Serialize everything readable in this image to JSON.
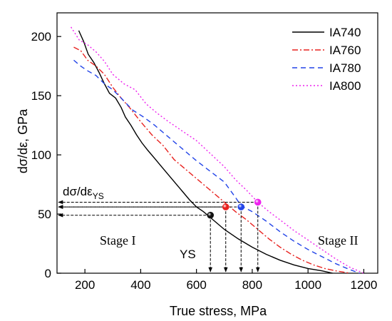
{
  "chart_data": {
    "type": "line",
    "xlabel": "True stress, MPa",
    "ylabel": "dσ/dε, GPa",
    "xlim": [
      100,
      1250
    ],
    "ylim": [
      0,
      220
    ],
    "xticks": [
      200,
      400,
      600,
      800,
      1000,
      1200
    ],
    "yticks": [
      0,
      50,
      100,
      150,
      200
    ],
    "grid": false,
    "legend_position": "top-right",
    "series": [
      {
        "name": "IA740",
        "color": "#000000",
        "dash": "solid",
        "points": [
          [
            178,
            205
          ],
          [
            195,
            196
          ],
          [
            212,
            185
          ],
          [
            232,
            178
          ],
          [
            250,
            170
          ],
          [
            270,
            160
          ],
          [
            288,
            152
          ],
          [
            310,
            148
          ],
          [
            330,
            140
          ],
          [
            345,
            132
          ],
          [
            365,
            125
          ],
          [
            385,
            117
          ],
          [
            405,
            110
          ],
          [
            425,
            104
          ],
          [
            450,
            97
          ],
          [
            475,
            90
          ],
          [
            500,
            83
          ],
          [
            525,
            76
          ],
          [
            550,
            69
          ],
          [
            575,
            62
          ],
          [
            600,
            56
          ],
          [
            625,
            52
          ],
          [
            650,
            47
          ],
          [
            700,
            37
          ],
          [
            750,
            29
          ],
          [
            800,
            22
          ],
          [
            850,
            16
          ],
          [
            900,
            11
          ],
          [
            950,
            7
          ],
          [
            1000,
            4
          ],
          [
            1050,
            2
          ],
          [
            1088,
            0
          ]
        ]
      },
      {
        "name": "IA760",
        "color": "#e8221f",
        "dash": "8,3,2,3",
        "points": [
          [
            160,
            191
          ],
          [
            185,
            188
          ],
          [
            210,
            180
          ],
          [
            240,
            175
          ],
          [
            270,
            168
          ],
          [
            300,
            157
          ],
          [
            330,
            148
          ],
          [
            360,
            140
          ],
          [
            400,
            128
          ],
          [
            440,
            117
          ],
          [
            480,
            108
          ],
          [
            520,
            96
          ],
          [
            560,
            88
          ],
          [
            600,
            80
          ],
          [
            640,
            72
          ],
          [
            680,
            64
          ],
          [
            700,
            60
          ],
          [
            740,
            52
          ],
          [
            780,
            45
          ],
          [
            820,
            37
          ],
          [
            860,
            29
          ],
          [
            900,
            22
          ],
          [
            940,
            16
          ],
          [
            980,
            11
          ],
          [
            1020,
            7
          ],
          [
            1060,
            4
          ],
          [
            1100,
            2
          ],
          [
            1150,
            0
          ]
        ]
      },
      {
        "name": "IA780",
        "color": "#2244e8",
        "dash": "7,5",
        "points": [
          [
            160,
            180
          ],
          [
            185,
            175
          ],
          [
            210,
            171
          ],
          [
            240,
            167
          ],
          [
            270,
            160
          ],
          [
            300,
            155
          ],
          [
            330,
            148
          ],
          [
            370,
            138
          ],
          [
            410,
            132
          ],
          [
            450,
            125
          ],
          [
            500,
            115
          ],
          [
            550,
            105
          ],
          [
            600,
            95
          ],
          [
            650,
            86
          ],
          [
            700,
            77
          ],
          [
            740,
            64
          ],
          [
            760,
            57
          ],
          [
            800,
            52
          ],
          [
            850,
            44
          ],
          [
            900,
            35
          ],
          [
            950,
            27
          ],
          [
            1000,
            20
          ],
          [
            1050,
            14
          ],
          [
            1100,
            8
          ],
          [
            1150,
            3
          ],
          [
            1185,
            0
          ]
        ]
      },
      {
        "name": "IA800",
        "color": "#ee22ee",
        "dash": "2,3",
        "points": [
          [
            150,
            208
          ],
          [
            180,
            197
          ],
          [
            210,
            193
          ],
          [
            240,
            187
          ],
          [
            270,
            179
          ],
          [
            300,
            168
          ],
          [
            340,
            160
          ],
          [
            380,
            155
          ],
          [
            420,
            143
          ],
          [
            460,
            135
          ],
          [
            500,
            128
          ],
          [
            550,
            120
          ],
          [
            600,
            112
          ],
          [
            650,
            101
          ],
          [
            700,
            90
          ],
          [
            740,
            79
          ],
          [
            780,
            70
          ],
          [
            820,
            60
          ],
          [
            860,
            52
          ],
          [
            900,
            45
          ],
          [
            950,
            36
          ],
          [
            1000,
            28
          ],
          [
            1050,
            20
          ],
          [
            1100,
            12
          ],
          [
            1150,
            5
          ],
          [
            1200,
            0
          ]
        ]
      }
    ],
    "markers": [
      {
        "series": "IA740",
        "x": 650,
        "y": 49,
        "color": "#111111"
      },
      {
        "series": "IA760",
        "x": 705,
        "y": 56,
        "color": "#e8221f"
      },
      {
        "series": "IA780",
        "x": 760,
        "y": 56,
        "color": "#2244e8"
      },
      {
        "series": "IA800",
        "x": 820,
        "y": 60,
        "color": "#ee22ee"
      }
    ],
    "annotations": {
      "derivative_label_main": "dσ/dε",
      "derivative_label_sub": "YS",
      "ys_label": "YS",
      "stage1_label": "Stage I",
      "stage2_label": "Stage II"
    }
  }
}
